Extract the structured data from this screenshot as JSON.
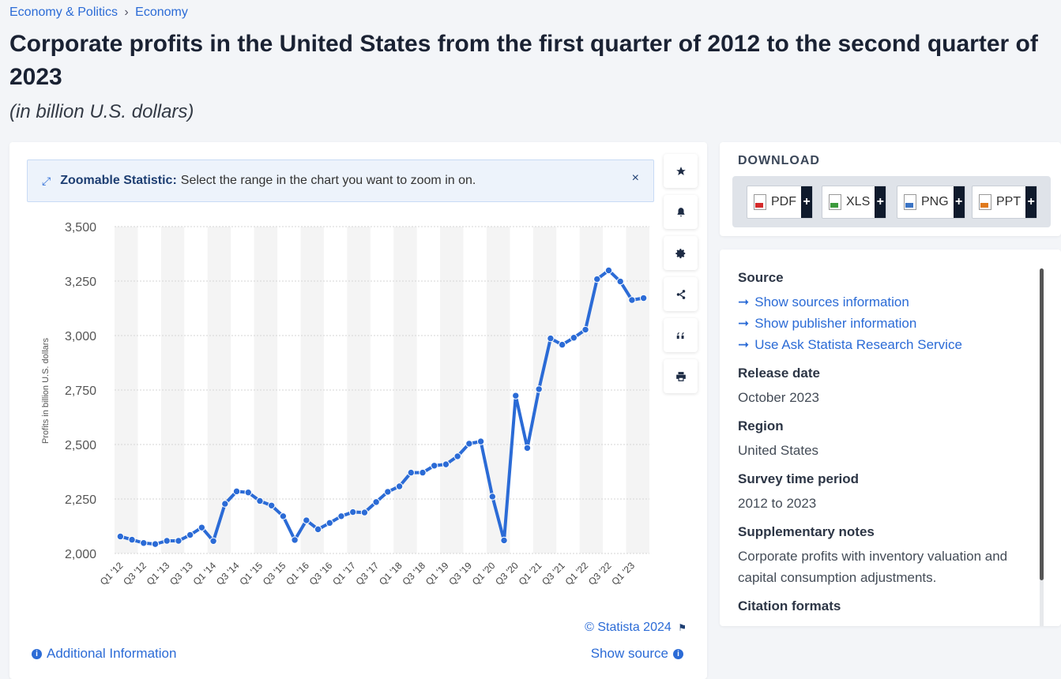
{
  "breadcrumb": {
    "parent": "Economy & Politics",
    "separator": "›",
    "current": "Economy"
  },
  "title": "Corporate profits in the United States from the first quarter of 2012 to the second quarter of 2023",
  "subtitle": "(in billion U.S. dollars)",
  "zoom_banner": {
    "label": "Zoomable Statistic:",
    "text": "Select the range in the chart you want to zoom in on.",
    "close": "×"
  },
  "tools": [
    "star-icon",
    "bell-icon",
    "gear-icon",
    "share-icon",
    "quote-icon",
    "print-icon"
  ],
  "chart_footer": {
    "copyright": "© Statista 2024",
    "flag": "⚑",
    "additional_info": "Additional Information",
    "show_source": "Show source"
  },
  "download": {
    "title": "DOWNLOAD",
    "buttons": [
      {
        "label": "PDF",
        "plus": "+",
        "color": "#d42a2a"
      },
      {
        "label": "XLS",
        "plus": "+",
        "color": "#3c9a3c"
      },
      {
        "label": "PNG",
        "plus": "+",
        "color": "#3b74c4"
      },
      {
        "label": "PPT",
        "plus": "+",
        "color": "#e07a1c"
      }
    ]
  },
  "meta": {
    "source_heading": "Source",
    "links": [
      "Show sources information",
      "Show publisher information",
      "Use Ask Statista Research Service"
    ],
    "release_heading": "Release date",
    "release": "October 2023",
    "region_heading": "Region",
    "region": "United States",
    "period_heading": "Survey time period",
    "period": "2012 to 2023",
    "notes_heading": "Supplementary notes",
    "notes": "Corporate profits with inventory valuation and capital consumption adjustments.",
    "citation_heading": "Citation formats"
  },
  "colors": {
    "line": "#2b6bd6",
    "accent": "#2b6bd6",
    "band": "#f4f4f4",
    "grid": "#d6d6d6"
  },
  "chart_data": {
    "type": "line",
    "title": "Corporate profits in the United States from the first quarter of 2012 to the second quarter of 2023",
    "ylabel": "Profits in billion U.S. dollars",
    "xlabel": "",
    "ylim": [
      2000,
      3500
    ],
    "yticks": [
      2000,
      2250,
      2500,
      2750,
      3000,
      3250,
      3500
    ],
    "ytick_labels": [
      "2,000",
      "2,250",
      "2,500",
      "2,750",
      "3,000",
      "3,250",
      "3,500"
    ],
    "xtick_labels": [
      "Q1 '12",
      "Q3 '12",
      "Q1 '13",
      "Q3 '13",
      "Q1 '14",
      "Q3 '14",
      "Q1 '15",
      "Q3 '15",
      "Q1 '16",
      "Q3 '16",
      "Q1 '17",
      "Q3 '17",
      "Q1 '18",
      "Q3 '18",
      "Q1 '19",
      "Q3 '19",
      "Q1 '20",
      "Q3 '20",
      "Q1 '21",
      "Q3 '21",
      "Q1 '22",
      "Q3 '22",
      "Q1 '23"
    ],
    "categories": [
      "Q1 '12",
      "Q2 '12",
      "Q3 '12",
      "Q4 '12",
      "Q1 '13",
      "Q2 '13",
      "Q3 '13",
      "Q4 '13",
      "Q1 '14",
      "Q2 '14",
      "Q3 '14",
      "Q4 '14",
      "Q1 '15",
      "Q2 '15",
      "Q3 '15",
      "Q4 '15",
      "Q1 '16",
      "Q2 '16",
      "Q3 '16",
      "Q4 '16",
      "Q1 '17",
      "Q2 '17",
      "Q3 '17",
      "Q4 '17",
      "Q1 '18",
      "Q2 '18",
      "Q3 '18",
      "Q4 '18",
      "Q1 '19",
      "Q2 '19",
      "Q3 '19",
      "Q4 '19",
      "Q1 '20",
      "Q2 '20",
      "Q3 '20",
      "Q4 '20",
      "Q1 '21",
      "Q2 '21",
      "Q3 '21",
      "Q4 '21",
      "Q1 '22",
      "Q2 '22",
      "Q3 '22",
      "Q4 '22",
      "Q1 '23",
      "Q2 '23"
    ],
    "values": [
      2078,
      2063,
      2048,
      2043,
      2058,
      2058,
      2085,
      2119,
      2057,
      2228,
      2285,
      2280,
      2241,
      2220,
      2171,
      2062,
      2152,
      2111,
      2140,
      2171,
      2190,
      2188,
      2236,
      2283,
      2308,
      2371,
      2371,
      2403,
      2409,
      2446,
      2504,
      2514,
      2261,
      2060,
      2724,
      2484,
      2754,
      2987,
      2958,
      2990,
      3027,
      3259,
      3299,
      3248,
      3163,
      3172
    ],
    "grid": true,
    "legend": "none"
  }
}
